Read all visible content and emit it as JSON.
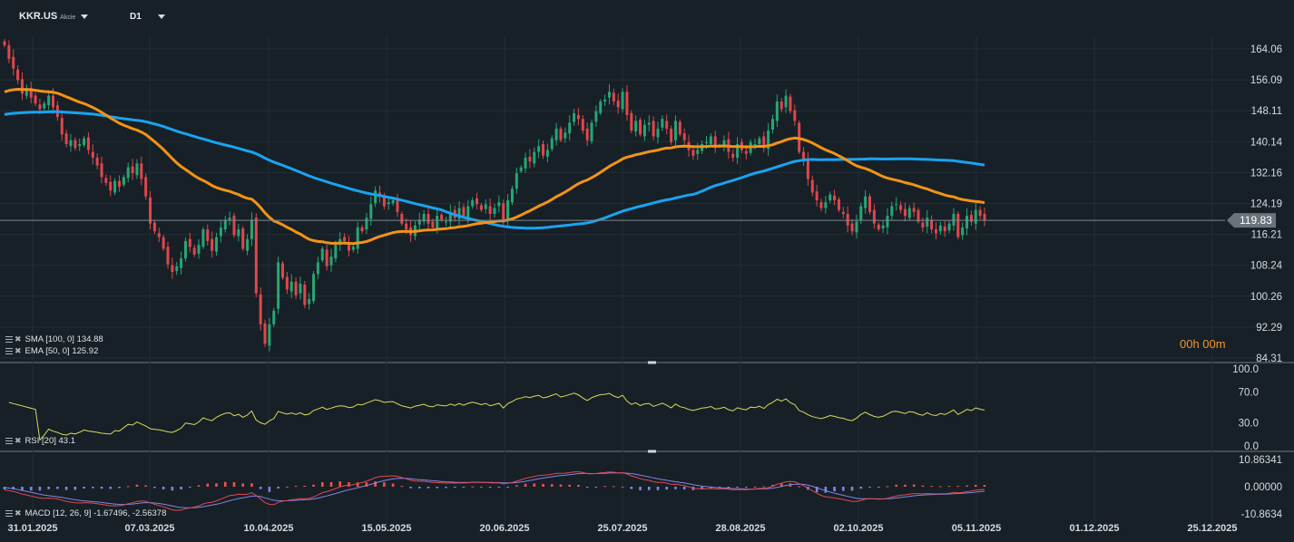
{
  "header": {
    "symbol": "KKR.US",
    "instrument_type": "Akcie",
    "timeframe": "D1"
  },
  "timer": "00h 00m",
  "indicators": {
    "sma_label": "SMA [100, 0]",
    "sma_value": "134.88",
    "ema_label": "EMA [50, 0]",
    "ema_value": "125.92",
    "rsi_label": "RSI [20]",
    "rsi_value": "43.1",
    "macd_label": "MACD [12, 26, 9]",
    "macd_value": "-1.67496, -2.56378"
  },
  "colors": {
    "background": "#172027",
    "up": "#26a675",
    "down": "#e0474c",
    "sma": "#1aa3f0",
    "ema": "#f29318",
    "rsi": "#d9d95c",
    "macd_line": "#e2474f",
    "signal_line": "#7f86e6",
    "hist_pos": "#ef5350",
    "hist_neg": "#7f86e6"
  },
  "chart_data": [
    {
      "type": "candlestick",
      "title": "KKR.US",
      "last_price": "119.83",
      "y_ticks": [
        "164.06",
        "156.09",
        "148.11",
        "140.14",
        "132.16",
        "124.19",
        "116.21",
        "108.24",
        "100.26",
        "92.29",
        "84.31"
      ],
      "ylim": [
        84.31,
        164.06
      ],
      "x_ticks": [
        "31.01.2025",
        "07.03.2025",
        "10.04.2025",
        "15.05.2025",
        "20.06.2025",
        "25.07.2025",
        "28.08.2025",
        "02.10.2025",
        "05.11.2025",
        "01.12.2025",
        "25.12.2025"
      ],
      "closes": [
        165.0,
        161.5,
        159.0,
        156.0,
        152.5,
        154.0,
        151.5,
        150.0,
        148.5,
        150.0,
        152.0,
        149.0,
        146.5,
        142.0,
        139.5,
        140.5,
        138.5,
        139.5,
        141.0,
        138.0,
        136.0,
        134.0,
        131.0,
        129.5,
        127.5,
        130.0,
        128.5,
        131.0,
        133.5,
        132.0,
        134.5,
        130.5,
        126.0,
        119.0,
        117.0,
        115.5,
        112.5,
        108.5,
        106.5,
        108.0,
        110.0,
        114.5,
        113.0,
        111.0,
        113.5,
        117.5,
        114.5,
        112.0,
        115.5,
        118.0,
        120.0,
        120.5,
        116.0,
        117.5,
        112.5,
        115.0,
        120.0,
        101.0,
        93.0,
        88.0,
        93.0,
        96.5,
        109.0,
        105.0,
        102.0,
        104.0,
        100.5,
        103.5,
        98.0,
        99.5,
        106.0,
        109.0,
        112.5,
        108.0,
        110.5,
        113.5,
        115.0,
        114.5,
        112.0,
        113.0,
        118.0,
        117.0,
        120.5,
        124.0,
        127.5,
        126.0,
        123.5,
        124.5,
        125.0,
        122.0,
        119.0,
        117.5,
        116.0,
        118.5,
        120.0,
        121.5,
        119.0,
        118.0,
        121.0,
        120.0,
        119.5,
        122.0,
        120.5,
        123.0,
        121.0,
        123.5,
        125.0,
        124.0,
        122.5,
        124.0,
        121.5,
        123.0,
        124.5,
        119.5,
        125.0,
        128.0,
        132.0,
        133.5,
        136.0,
        135.0,
        137.5,
        139.0,
        136.5,
        138.0,
        141.0,
        143.5,
        140.5,
        142.5,
        145.0,
        147.5,
        146.0,
        143.0,
        140.5,
        145.0,
        148.0,
        150.5,
        151.0,
        153.0,
        150.5,
        149.0,
        153.0,
        147.0,
        143.0,
        145.5,
        142.0,
        144.5,
        145.0,
        141.5,
        143.5,
        146.0,
        143.5,
        140.0,
        145.5,
        142.0,
        140.5,
        138.0,
        136.5,
        138.0,
        139.5,
        140.0,
        141.5,
        138.5,
        139.0,
        140.5,
        137.5,
        136.0,
        139.5,
        138.0,
        137.0,
        140.0,
        139.5,
        141.0,
        138.5,
        143.0,
        146.0,
        150.5,
        148.5,
        152.0,
        148.0,
        145.5,
        137.5,
        135.0,
        130.5,
        127.0,
        125.0,
        123.0,
        124.5,
        126.5,
        125.0,
        122.5,
        121.5,
        118.5,
        117.0,
        119.5,
        123.5,
        126.0,
        122.0,
        119.0,
        117.5,
        118.5,
        121.0,
        123.5,
        124.0,
        122.5,
        121.0,
        123.0,
        122.0,
        119.5,
        118.0,
        120.5,
        117.5,
        116.5,
        118.5,
        117.0,
        119.0,
        121.5,
        115.5,
        118.0,
        121.0,
        119.5,
        122.5,
        121.0,
        119.8
      ],
      "sma_label": "SMA [100, 0]",
      "sma_last": 134.88,
      "ema_label": "EMA [50, 0]",
      "ema_last": 125.92
    },
    {
      "type": "line",
      "title": "RSI [20]",
      "last_value": 43.1,
      "y_ticks": [
        "100.0",
        "70.0",
        "30.0",
        "0.0"
      ],
      "ylim": [
        0,
        100
      ]
    },
    {
      "type": "bar",
      "title": "MACD [12, 26, 9]",
      "last_values": [
        -1.67496,
        -2.56378
      ],
      "y_ticks": [
        "10.86341",
        "0.00000",
        "-10.8634"
      ],
      "ylim": [
        -10.8634,
        10.86341
      ]
    }
  ]
}
